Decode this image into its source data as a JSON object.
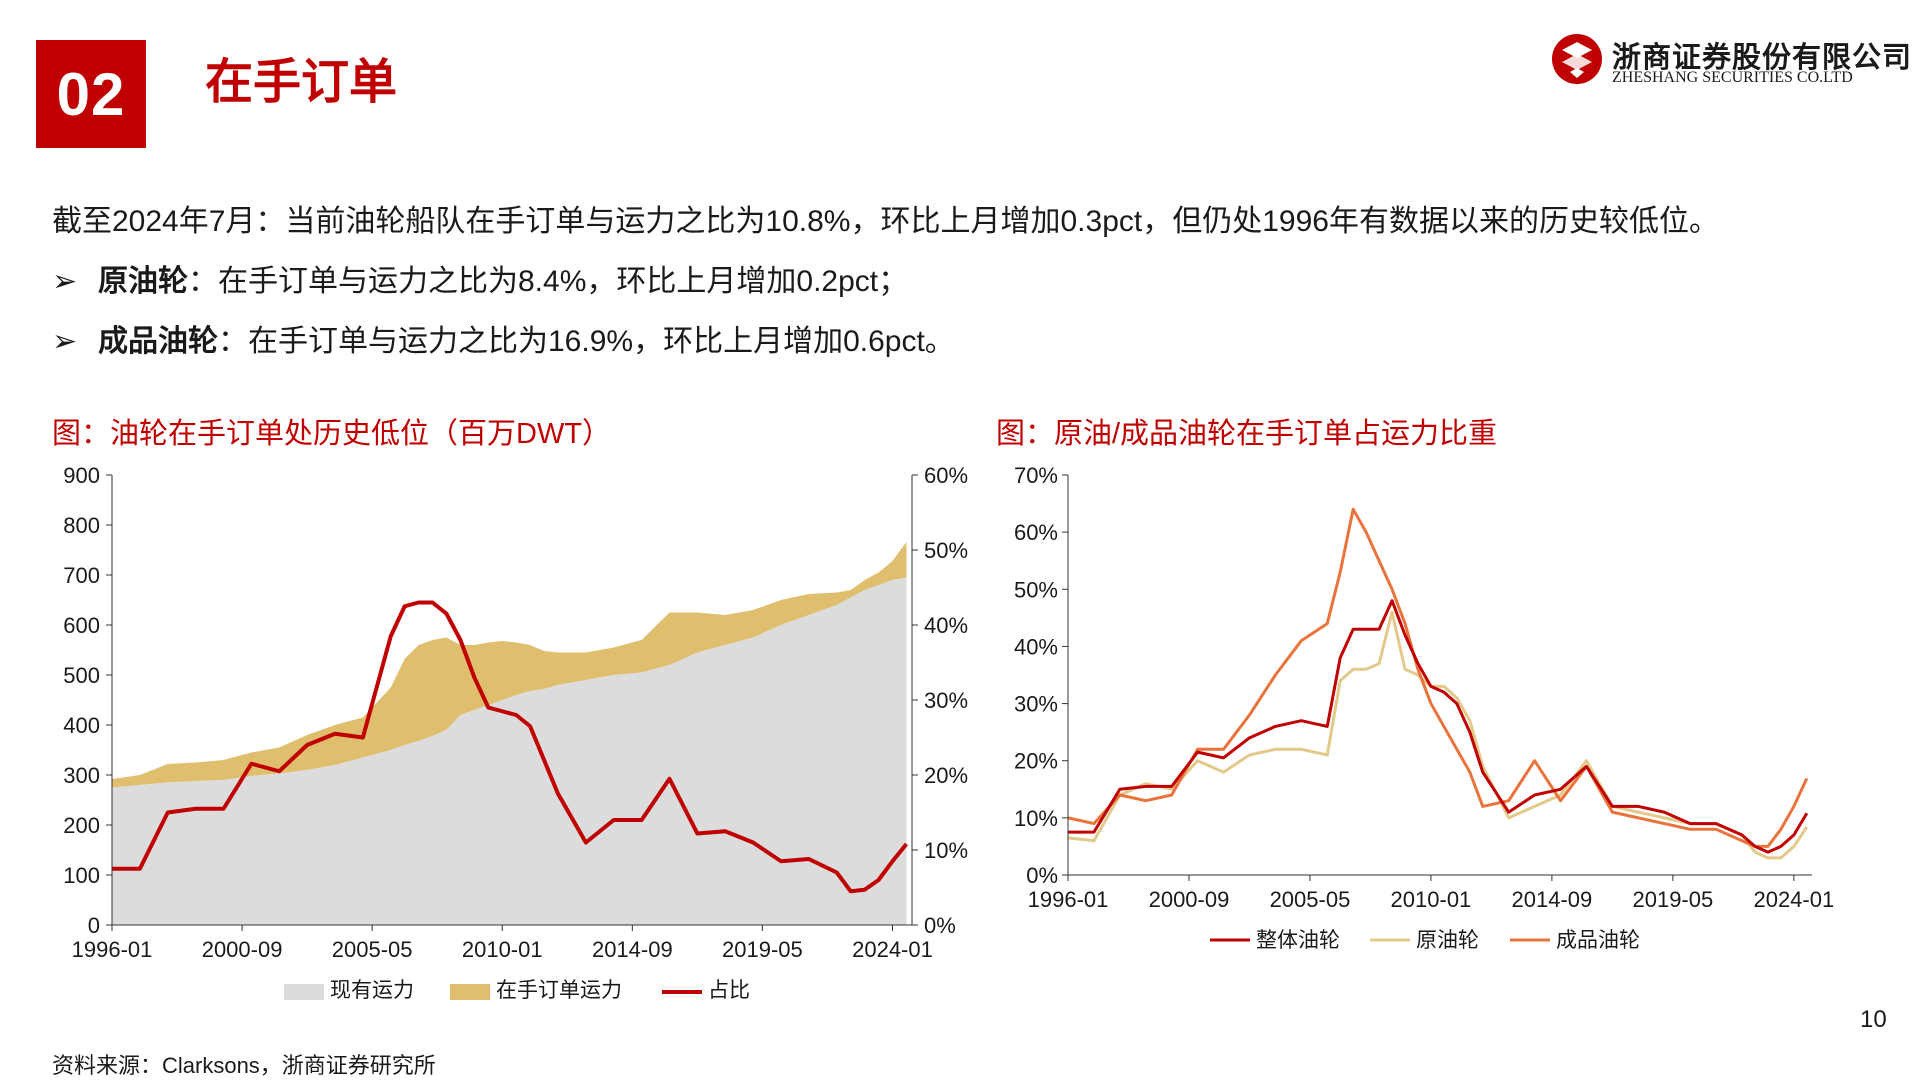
{
  "section": {
    "number": "02",
    "title": "在手订单"
  },
  "logo": {
    "name_cn": "浙商证券股份有限公司",
    "name_en": "ZHESHANG SECURITIES CO.LTD",
    "color": "#c00000"
  },
  "summary": "截至2024年7月：当前油轮船队在手订单与运力之比为10.8%，环比上月增加0.3pct，但仍处1996年有数据以来的历史较低位。",
  "bullets": [
    {
      "marker": "➢",
      "label": "原油轮",
      "text": "：在手订单与运力之比为8.4%，环比上月增加0.2pct；"
    },
    {
      "marker": "➢",
      "label": "成品油轮",
      "text": "：在手订单与运力之比为16.9%，环比上月增加0.6pct。"
    }
  ],
  "page_number": "10",
  "source": "资料来源：Clarksons，浙商证券研究所",
  "colors": {
    "accent": "#c00000",
    "fleet": "#dcdcdc",
    "orderbook": "#dfbe6e",
    "ratio": "#c00000",
    "crude": "#e3c98a",
    "product": "#e8743c"
  },
  "chart_data": [
    {
      "type": "area",
      "title": "图：油轮在手订单处历史低位（百万DWT）",
      "x_ticks": [
        "1996-01",
        "2000-09",
        "2005-05",
        "2010-01",
        "2014-09",
        "2019-05",
        "2024-01"
      ],
      "y_ticks": [
        "900",
        "800",
        "700",
        "600",
        "500",
        "400",
        "300",
        "200",
        "100",
        "0"
      ],
      "y_right_ticks": [
        "60%",
        "50%",
        "40%",
        "30%",
        "20%",
        "10%",
        "0%"
      ],
      "ylim": [
        0,
        900
      ],
      "y_right_lim": [
        0,
        0.6
      ],
      "x": [
        1996.0,
        1997.0,
        1998.0,
        1999.0,
        2000.0,
        2001.0,
        2002.0,
        2003.0,
        2004.0,
        2005.0,
        2006.0,
        2006.5,
        2007.0,
        2007.5,
        2008.0,
        2008.5,
        2009.0,
        2009.5,
        2010.0,
        2010.5,
        2011.0,
        2011.5,
        2012.0,
        2013.0,
        2014.0,
        2015.0,
        2016.0,
        2017.0,
        2018.0,
        2019.0,
        2020.0,
        2021.0,
        2022.0,
        2022.5,
        2023.0,
        2023.5,
        2024.0,
        2024.5
      ],
      "series": [
        {
          "name": "现有运力",
          "values": [
            275,
            280,
            285,
            288,
            290,
            298,
            303,
            310,
            320,
            335,
            350,
            360,
            368,
            378,
            390,
            420,
            430,
            440,
            450,
            460,
            468,
            472,
            480,
            490,
            500,
            505,
            520,
            545,
            560,
            575,
            600,
            620,
            640,
            655,
            670,
            680,
            690,
            695
          ]
        },
        {
          "name": "在手订单运力",
          "values": [
            292,
            300,
            322,
            325,
            330,
            345,
            355,
            380,
            400,
            415,
            475,
            532,
            560,
            570,
            575,
            560,
            560,
            565,
            568,
            565,
            560,
            548,
            545,
            545,
            555,
            570,
            625,
            625,
            620,
            630,
            650,
            662,
            665,
            670,
            690,
            705,
            728,
            766
          ]
        },
        {
          "name": "占比",
          "values": [
            0.075,
            0.075,
            0.15,
            0.155,
            0.155,
            0.215,
            0.205,
            0.24,
            0.255,
            0.25,
            0.385,
            0.425,
            0.43,
            0.43,
            0.415,
            0.38,
            0.33,
            0.29,
            0.285,
            0.28,
            0.265,
            0.22,
            0.175,
            0.11,
            0.14,
            0.14,
            0.195,
            0.122,
            0.125,
            0.11,
            0.085,
            0.088,
            0.07,
            0.045,
            0.047,
            0.06,
            0.085,
            0.108
          ]
        }
      ],
      "legend": [
        "现有运力",
        "在手订单运力",
        "占比"
      ],
      "legend_position": "bottom"
    },
    {
      "type": "line",
      "title": "图：原油/成品油轮在手订单占运力比重",
      "x_ticks": [
        "1996-01",
        "2000-09",
        "2005-05",
        "2010-01",
        "2014-09",
        "2019-05",
        "2024-01"
      ],
      "y_ticks": [
        "70%",
        "60%",
        "50%",
        "40%",
        "30%",
        "20%",
        "10%",
        "0%"
      ],
      "ylim": [
        0,
        0.7
      ],
      "x": [
        1996.0,
        1997.0,
        1998.0,
        1999.0,
        2000.0,
        2001.0,
        2002.0,
        2003.0,
        2004.0,
        2005.0,
        2006.0,
        2006.5,
        2007.0,
        2007.5,
        2008.0,
        2008.5,
        2009.0,
        2009.5,
        2010.0,
        2010.5,
        2011.0,
        2011.5,
        2012.0,
        2013.0,
        2014.0,
        2015.0,
        2016.0,
        2017.0,
        2018.0,
        2019.0,
        2020.0,
        2021.0,
        2022.0,
        2022.5,
        2023.0,
        2023.5,
        2024.0,
        2024.5
      ],
      "series": [
        {
          "name": "整体油轮",
          "values": [
            0.075,
            0.075,
            0.15,
            0.155,
            0.155,
            0.215,
            0.205,
            0.24,
            0.26,
            0.27,
            0.26,
            0.38,
            0.43,
            0.43,
            0.43,
            0.48,
            0.42,
            0.37,
            0.33,
            0.32,
            0.3,
            0.25,
            0.18,
            0.11,
            0.14,
            0.15,
            0.19,
            0.12,
            0.12,
            0.11,
            0.09,
            0.09,
            0.07,
            0.05,
            0.04,
            0.05,
            0.07,
            0.108
          ]
        },
        {
          "name": "原油轮",
          "values": [
            0.065,
            0.06,
            0.14,
            0.16,
            0.15,
            0.2,
            0.18,
            0.21,
            0.22,
            0.22,
            0.21,
            0.34,
            0.36,
            0.36,
            0.37,
            0.46,
            0.36,
            0.35,
            0.33,
            0.33,
            0.31,
            0.27,
            0.19,
            0.1,
            0.12,
            0.14,
            0.2,
            0.12,
            0.11,
            0.1,
            0.09,
            0.09,
            0.07,
            0.04,
            0.03,
            0.03,
            0.05,
            0.084
          ]
        },
        {
          "name": "成品油轮",
          "values": [
            0.1,
            0.09,
            0.14,
            0.13,
            0.14,
            0.22,
            0.22,
            0.28,
            0.35,
            0.41,
            0.44,
            0.53,
            0.64,
            0.6,
            0.55,
            0.5,
            0.44,
            0.36,
            0.3,
            0.26,
            0.22,
            0.18,
            0.12,
            0.13,
            0.2,
            0.13,
            0.19,
            0.11,
            0.1,
            0.09,
            0.08,
            0.08,
            0.06,
            0.05,
            0.05,
            0.08,
            0.12,
            0.169
          ]
        }
      ],
      "legend": [
        "整体油轮",
        "原油轮",
        "成品油轮"
      ],
      "legend_position": "bottom"
    }
  ]
}
